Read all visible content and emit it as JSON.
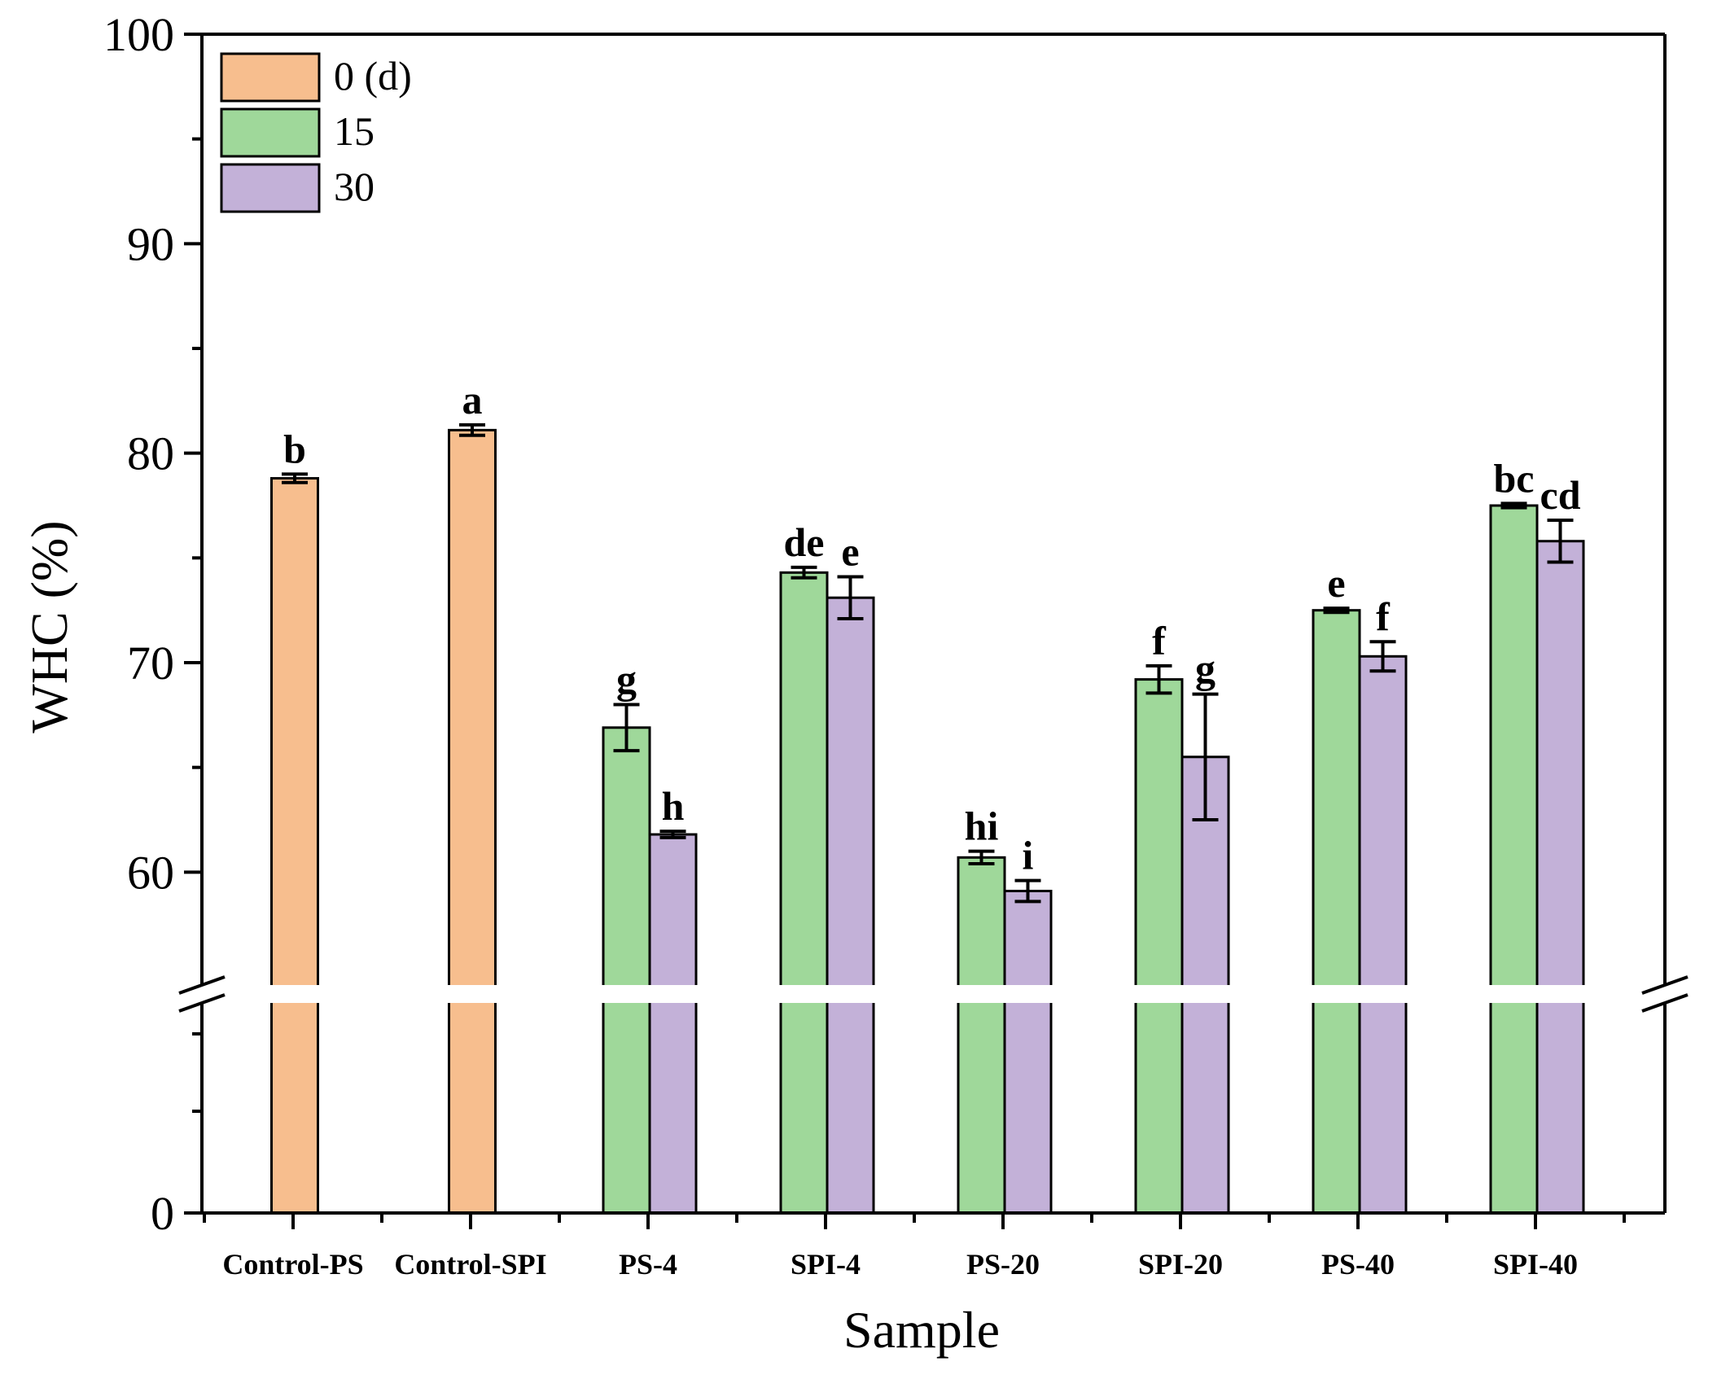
{
  "chart_data": {
    "type": "bar",
    "xlabel": "Sample",
    "ylabel": "WHC (%)",
    "y_break": [
      0,
      55
    ],
    "ylim": [
      0,
      100
    ],
    "y_ticks_lower": [
      0
    ],
    "y_ticks_upper": [
      60,
      70,
      80,
      90,
      100
    ],
    "categories": [
      "Control-PS",
      "Control-SPI",
      "PS-4",
      "SPI-4",
      "PS-20",
      "SPI-20",
      "PS-40",
      "SPI-40"
    ],
    "legend": {
      "position": "top-left"
    },
    "series": [
      {
        "name": "0 (d)",
        "color": "#f7be8e",
        "values": [
          78.8,
          81.1,
          null,
          null,
          null,
          null,
          null,
          null
        ],
        "errors": [
          0.2,
          0.25,
          null,
          null,
          null,
          null,
          null,
          null
        ],
        "letters": [
          "b",
          "a",
          null,
          null,
          null,
          null,
          null,
          null
        ]
      },
      {
        "name": "15",
        "color": "#9fd89a",
        "values": [
          null,
          null,
          66.9,
          74.3,
          60.7,
          69.2,
          72.5,
          77.5
        ],
        "errors": [
          null,
          null,
          1.1,
          0.25,
          0.3,
          0.65,
          0.1,
          0.1
        ],
        "letters": [
          null,
          null,
          "g",
          "de",
          "hi",
          "f",
          "e",
          "bc"
        ]
      },
      {
        "name": "30",
        "color": "#c3b1d8",
        "values": [
          null,
          null,
          61.8,
          73.1,
          59.1,
          65.5,
          70.3,
          75.8
        ],
        "errors": [
          null,
          null,
          0.15,
          1.0,
          0.5,
          3.0,
          0.7,
          1.0
        ],
        "letters": [
          null,
          null,
          "h",
          "e",
          "i",
          "g",
          "f",
          "cd"
        ]
      }
    ]
  }
}
